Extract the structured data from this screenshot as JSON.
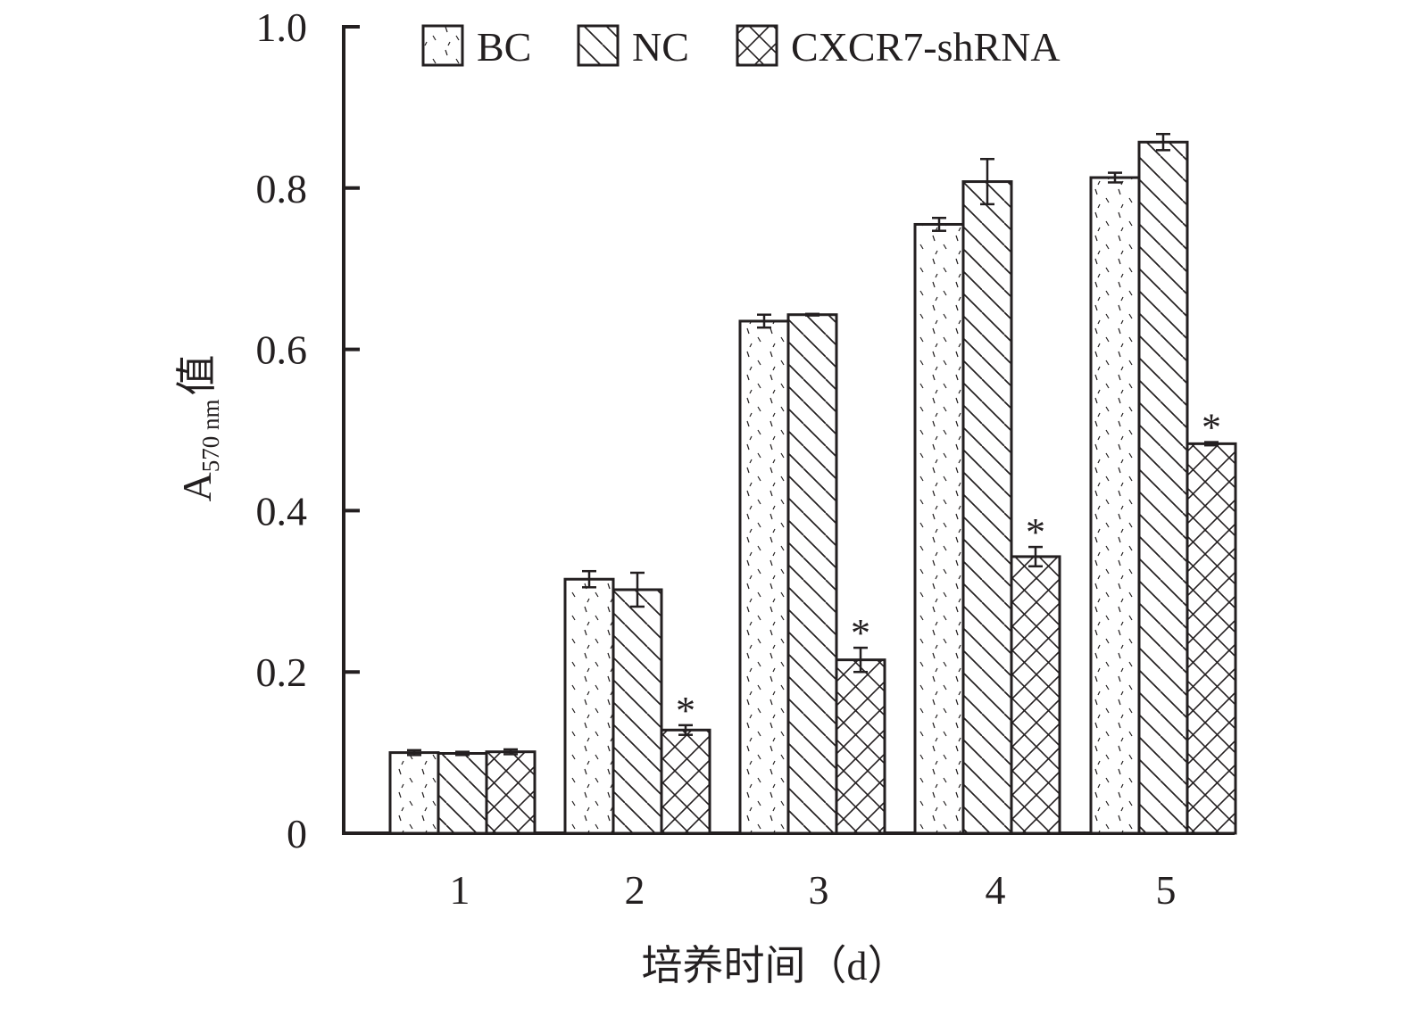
{
  "chart_data": {
    "type": "bar",
    "categories": [
      "1",
      "2",
      "3",
      "4",
      "5"
    ],
    "series": [
      {
        "name": "BC",
        "pattern": "dots",
        "values": [
          0.1,
          0.315,
          0.635,
          0.755,
          0.813
        ],
        "errors": [
          0.003,
          0.01,
          0.008,
          0.008,
          0.006
        ]
      },
      {
        "name": "NC",
        "pattern": "diagonal",
        "values": [
          0.099,
          0.302,
          0.643,
          0.808,
          0.857
        ],
        "errors": [
          0.002,
          0.021,
          0.001,
          0.028,
          0.01
        ]
      },
      {
        "name": "CXCR7-shRNA",
        "pattern": "crosshatch",
        "values": [
          0.101,
          0.128,
          0.215,
          0.343,
          0.483
        ],
        "errors": [
          0.003,
          0.006,
          0.015,
          0.012,
          0.002
        ]
      }
    ],
    "significance": [
      {
        "category": "2",
        "series": "CXCR7-shRNA",
        "label": "*"
      },
      {
        "category": "3",
        "series": "CXCR7-shRNA",
        "label": "*"
      },
      {
        "category": "4",
        "series": "CXCR7-shRNA",
        "label": "*"
      },
      {
        "category": "5",
        "series": "CXCR7-shRNA",
        "label": "*"
      }
    ],
    "ylim": [
      0,
      1.0
    ],
    "yticks": [
      "0",
      "0.2",
      "0.4",
      "0.6",
      "0.8",
      "1.0"
    ],
    "ylabel": {
      "main": "A",
      "subscript": "570 nm",
      "suffix": "值"
    },
    "xlabel": "培养时间（d）",
    "legend_position": "top",
    "grid": false,
    "colors": {
      "ink": "#231f20",
      "background": "#ffffff"
    }
  }
}
